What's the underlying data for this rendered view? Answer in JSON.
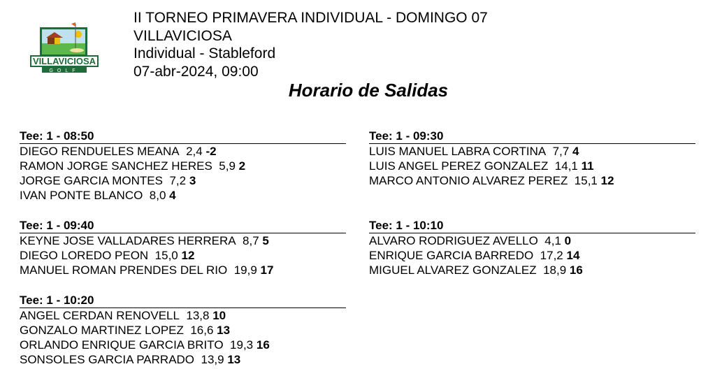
{
  "header": {
    "tournament": "II TORNEO PRIMAVERA INDIVIDUAL - DOMINGO 07",
    "club": "VILLAVICIOSA",
    "format": "Individual - Stableford",
    "datetime": "07-abr-2024, 09:00",
    "logo_text": "VILLAVICIOSA GOLF"
  },
  "title": "Horario de Salidas",
  "groups": [
    {
      "tee": "Tee: 1 - 08:50",
      "players": [
        {
          "name": "DIEGO RENDUELES MEANA",
          "hcp": "2,4",
          "phcp": "-2"
        },
        {
          "name": "RAMON JORGE SANCHEZ HERES",
          "hcp": "5,9",
          "phcp": "2"
        },
        {
          "name": "JORGE GARCIA MONTES",
          "hcp": "7,2",
          "phcp": "3"
        },
        {
          "name": "IVAN PONTE BLANCO",
          "hcp": "8,0",
          "phcp": "4"
        }
      ]
    },
    {
      "tee": "Tee: 1 - 09:30",
      "players": [
        {
          "name": "LUIS MANUEL LABRA CORTINA",
          "hcp": "7,7",
          "phcp": "4"
        },
        {
          "name": "LUIS ANGEL PEREZ GONZALEZ",
          "hcp": "14,1",
          "phcp": "11"
        },
        {
          "name": "MARCO ANTONIO ALVAREZ PEREZ",
          "hcp": "15,1",
          "phcp": "12"
        }
      ]
    },
    {
      "tee": "Tee: 1 - 09:40",
      "players": [
        {
          "name": "KEYNE JOSE VALLADARES HERRERA",
          "hcp": "8,7",
          "phcp": "5"
        },
        {
          "name": "DIEGO LOREDO PEON",
          "hcp": "15,0",
          "phcp": "12"
        },
        {
          "name": "MANUEL ROMAN PRENDES DEL RIO",
          "hcp": "19,9",
          "phcp": "17"
        }
      ]
    },
    {
      "tee": "Tee: 1 - 10:10",
      "players": [
        {
          "name": "ALVARO RODRIGUEZ AVELLO",
          "hcp": "4,1",
          "phcp": "0"
        },
        {
          "name": "ENRIQUE GARCIA BARREDO",
          "hcp": "17,2",
          "phcp": "14"
        },
        {
          "name": "MIGUEL ALVAREZ GONZALEZ",
          "hcp": "18,9",
          "phcp": "16"
        }
      ]
    },
    {
      "tee": "Tee: 1 - 10:20",
      "players": [
        {
          "name": "ANGEL CERDAN RENOVELL",
          "hcp": "13,8",
          "phcp": "10"
        },
        {
          "name": "GONZALO MARTINEZ LOPEZ",
          "hcp": "16,6",
          "phcp": "13"
        },
        {
          "name": "ORLANDO ENRIQUE GARCIA BRITO",
          "hcp": "19,3",
          "phcp": "16"
        },
        {
          "name": "SONSOLES GARCIA PARRADO",
          "hcp": "13,9",
          "phcp": "13"
        }
      ]
    }
  ]
}
